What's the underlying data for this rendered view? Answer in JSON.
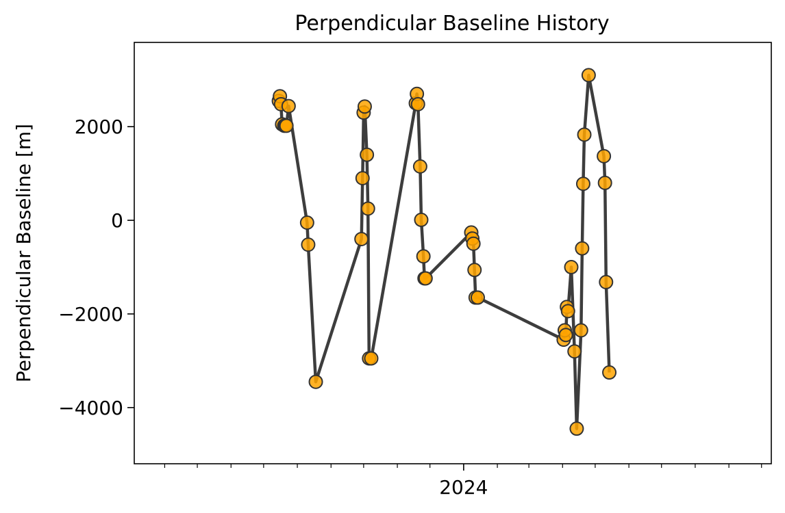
{
  "chart_data": {
    "type": "line",
    "title": "Perpendicular Baseline History",
    "xlabel": "",
    "ylabel": "Perpendicular Baseline [m]",
    "xlim": [
      "2023-03-04",
      "2024-10-10"
    ],
    "ylim": [
      -5200,
      3800
    ],
    "y_ticks": [
      -4000,
      -2000,
      0,
      2000
    ],
    "y_tick_labels": [
      "−4000",
      "−2000",
      "0",
      "2000"
    ],
    "x_major_ticks": [
      {
        "date": "2024-01-01",
        "label": "2024"
      }
    ],
    "x_minor_ticks": [
      "2023-03-01",
      "2023-04-01",
      "2023-05-01",
      "2023-06-01",
      "2023-07-01",
      "2023-08-01",
      "2023-09-01",
      "2023-10-01",
      "2023-11-01",
      "2023-12-01",
      "2024-02-01",
      "2024-03-01",
      "2024-04-01",
      "2024-05-01",
      "2024-06-01",
      "2024-07-01",
      "2024-08-01",
      "2024-09-01",
      "2024-10-01"
    ],
    "grid": false,
    "legend": null,
    "colors": {
      "line": "#3d3d3d",
      "marker_fill": "#ffa500",
      "marker_edge": "#333333"
    },
    "series": [
      {
        "x": [
          "2023-07-15",
          "2023-07-16",
          "2023-07-17",
          "2023-07-18",
          "2023-07-20",
          "2023-07-21",
          "2023-07-22",
          "2023-07-24",
          "2023-08-10",
          "2023-08-11",
          "2023-08-18",
          "2023-09-29",
          "2023-09-30",
          "2023-10-01",
          "2023-10-02",
          "2023-10-04",
          "2023-10-05",
          "2023-10-06",
          "2023-10-08",
          "2023-11-18",
          "2023-11-19",
          "2023-11-20",
          "2023-11-22",
          "2023-11-23",
          "2023-11-25",
          "2023-11-26",
          "2023-11-27",
          "2024-01-08",
          "2024-01-09",
          "2024-01-10",
          "2024-01-11",
          "2024-01-12",
          "2024-01-14",
          "2024-04-02",
          "2024-04-03",
          "2024-04-04",
          "2024-04-05",
          "2024-04-06",
          "2024-04-09",
          "2024-04-12",
          "2024-04-14",
          "2024-04-18",
          "2024-04-19",
          "2024-04-20",
          "2024-04-21",
          "2024-04-25",
          "2024-05-09",
          "2024-05-10",
          "2024-05-11",
          "2024-05-14"
        ],
        "y": [
          2550,
          2650,
          2480,
          2050,
          2020,
          2030,
          2020,
          2440,
          -50,
          -520,
          -3450,
          -400,
          900,
          2300,
          2430,
          1400,
          250,
          -2950,
          -2950,
          2500,
          2700,
          2480,
          1150,
          10,
          -770,
          -1240,
          -1240,
          -260,
          -390,
          -500,
          -1060,
          -1650,
          -1650,
          -2550,
          -2350,
          -2450,
          -1850,
          -1940,
          -1000,
          -2800,
          -4450,
          -2350,
          -600,
          780,
          1830,
          3100,
          1370,
          800,
          -1320,
          -3250
        ]
      }
    ]
  }
}
